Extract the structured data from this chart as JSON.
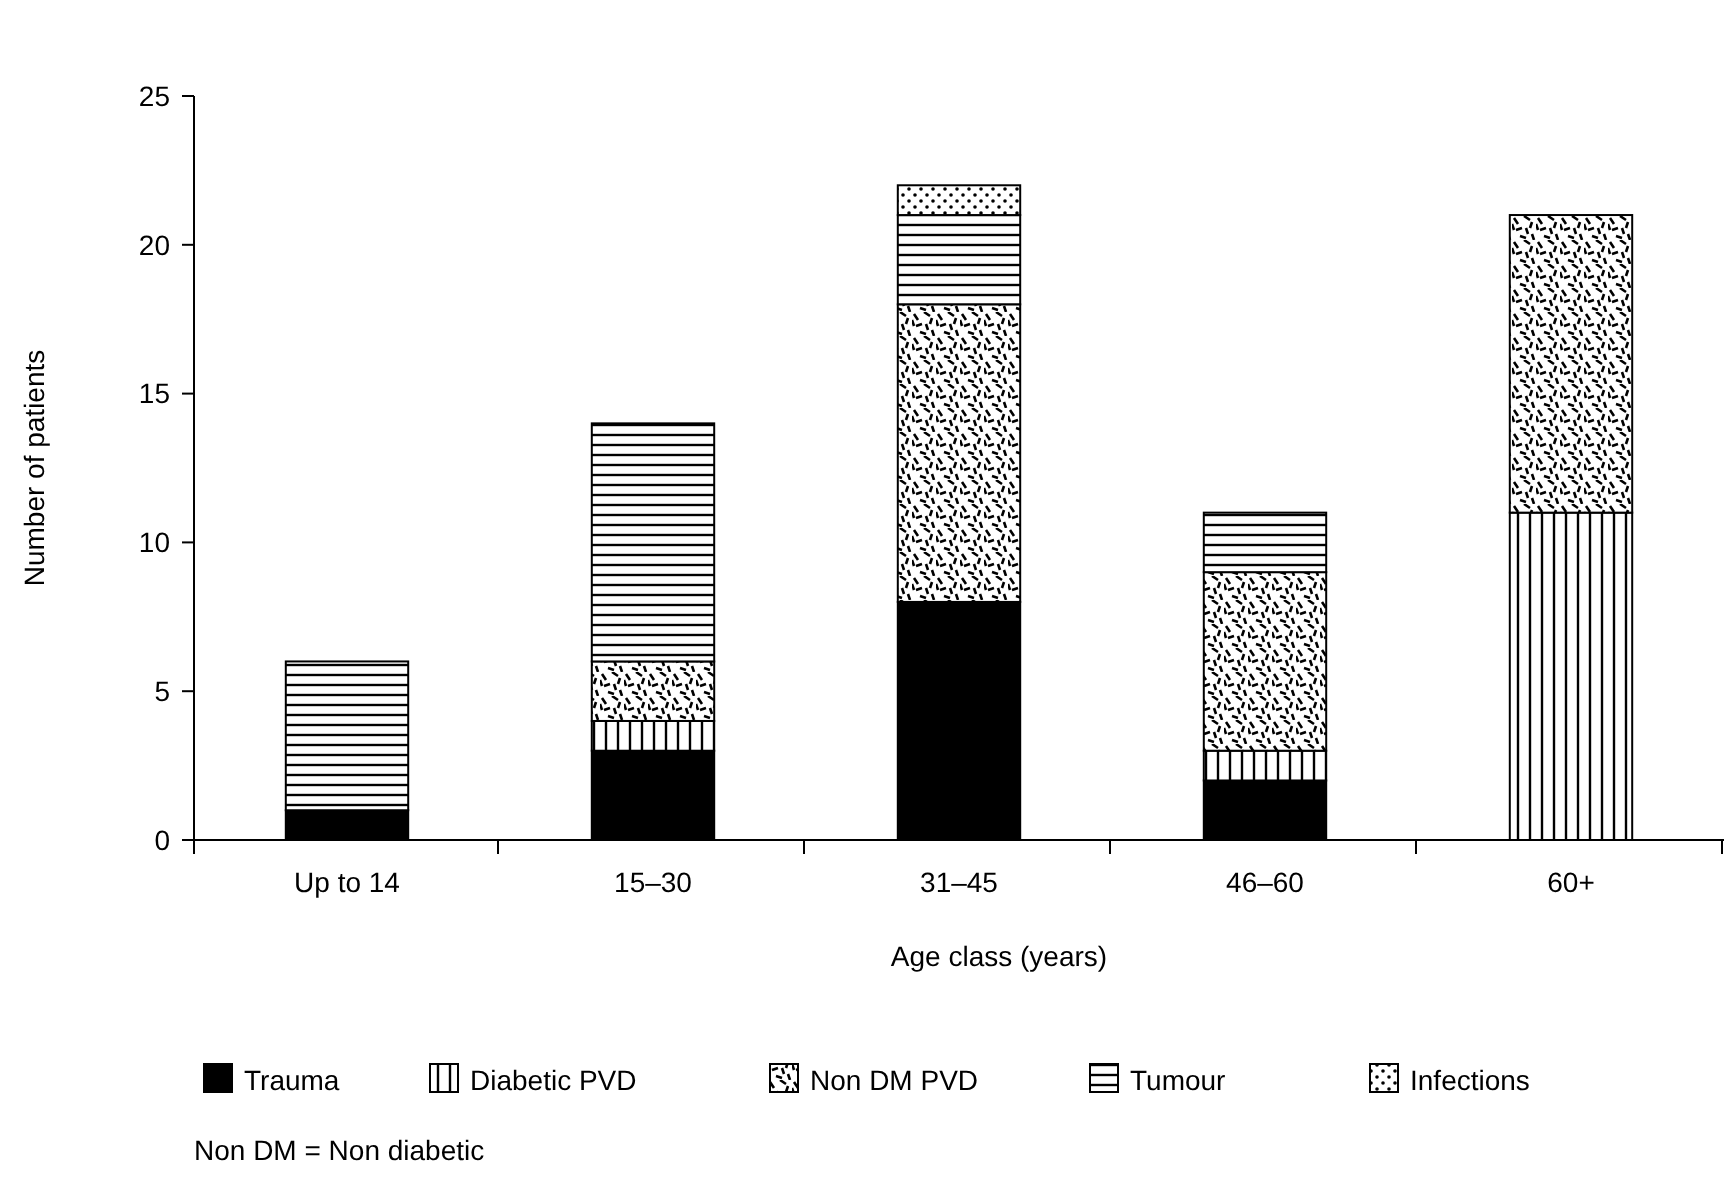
{
  "chart_data": {
    "type": "bar",
    "stacked": true,
    "xlabel": "Age class (years)",
    "ylabel": "Number of patients",
    "categories": [
      "Up to 14",
      "15–30",
      "31–45",
      "46–60",
      "60+"
    ],
    "series": [
      {
        "name": "Trauma",
        "color": "#000000",
        "values": [
          1,
          3,
          8,
          2,
          0
        ]
      },
      {
        "name": "Diabetic PVD",
        "color": "#000000",
        "values": [
          0,
          1,
          0,
          1,
          11
        ]
      },
      {
        "name": "Non DM PVD",
        "color": "#000000",
        "values": [
          0,
          2,
          10,
          6,
          10
        ]
      },
      {
        "name": "Tumour",
        "color": "#000000",
        "values": [
          5,
          8,
          3,
          2,
          0
        ]
      },
      {
        "name": "Infections",
        "color": "#000000",
        "values": [
          0,
          0,
          1,
          0,
          0
        ]
      }
    ],
    "ylim": [
      0,
      25
    ],
    "yticks": [
      0,
      5,
      10,
      15,
      20,
      25
    ],
    "legend": "bottom",
    "grid": false,
    "annotations": [
      "Non DM = Non diabetic"
    ]
  }
}
